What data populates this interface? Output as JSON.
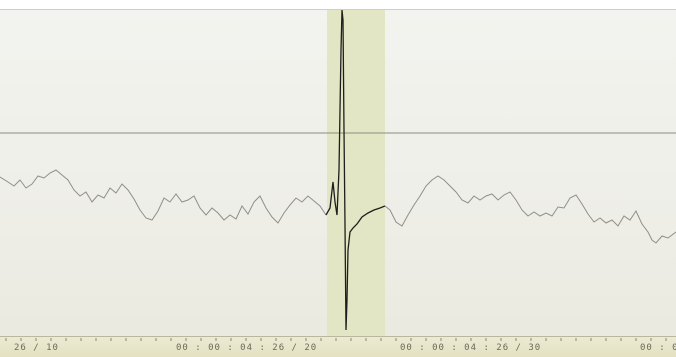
{
  "timeline": {
    "labels": [
      "26 / 10",
      "00 : 00 : 04 : 26 / 20",
      "00 : 00 : 04 : 26 / 30",
      "00 : 0"
    ]
  },
  "colors": {
    "background": "#efefe9",
    "selection": "#e2e6c4",
    "trace": "#8a8a84",
    "trace_selected": "#1e1e1e",
    "reference_line": "#8c8c80",
    "timeline": "#e6e4c6"
  },
  "waveform": {
    "selection_active": true
  }
}
